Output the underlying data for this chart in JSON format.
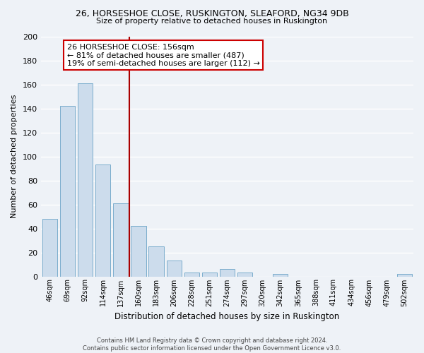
{
  "title": "26, HORSESHOE CLOSE, RUSKINGTON, SLEAFORD, NG34 9DB",
  "subtitle": "Size of property relative to detached houses in Ruskington",
  "xlabel": "Distribution of detached houses by size in Ruskington",
  "ylabel": "Number of detached properties",
  "bar_labels": [
    "46sqm",
    "69sqm",
    "92sqm",
    "114sqm",
    "137sqm",
    "160sqm",
    "183sqm",
    "206sqm",
    "228sqm",
    "251sqm",
    "274sqm",
    "297sqm",
    "320sqm",
    "342sqm",
    "365sqm",
    "388sqm",
    "411sqm",
    "434sqm",
    "456sqm",
    "479sqm",
    "502sqm"
  ],
  "bar_values": [
    48,
    142,
    161,
    93,
    61,
    42,
    25,
    13,
    3,
    3,
    6,
    3,
    0,
    2,
    0,
    0,
    0,
    0,
    0,
    0,
    2
  ],
  "bar_color": "#ccdcec",
  "bar_edge_color": "#7aadcc",
  "vline_color": "#aa0000",
  "ylim": [
    0,
    200
  ],
  "yticks": [
    0,
    20,
    40,
    60,
    80,
    100,
    120,
    140,
    160,
    180,
    200
  ],
  "annotation_title": "26 HORSESHOE CLOSE: 156sqm",
  "annotation_line1": "← 81% of detached houses are smaller (487)",
  "annotation_line2": "19% of semi-detached houses are larger (112) →",
  "annotation_box_color": "#ffffff",
  "annotation_box_edge": "#cc0000",
  "footer_line1": "Contains HM Land Registry data © Crown copyright and database right 2024.",
  "footer_line2": "Contains public sector information licensed under the Open Government Licence v3.0.",
  "background_color": "#eef2f7",
  "grid_color": "#ffffff",
  "vline_index": 4.5
}
